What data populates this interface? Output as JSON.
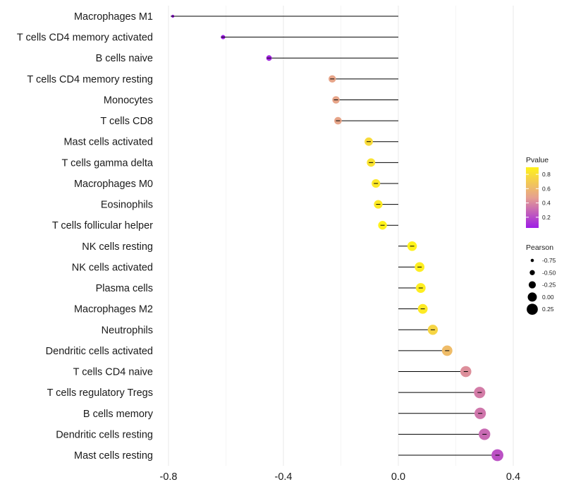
{
  "chart_data": {
    "type": "lollipop",
    "title": "",
    "xlabel": "",
    "ylabel": "",
    "xlim": [
      -0.82,
      0.43
    ],
    "x_ticks": [
      -0.8,
      -0.4,
      0.0,
      0.4
    ],
    "x_tick_labels": [
      "-0.8",
      "-0.4",
      "0.0",
      "0.4"
    ],
    "grid": true,
    "baseline": 0.0,
    "categories": [
      "Macrophages M1",
      "T cells CD4 memory activated",
      "B cells naive",
      "T cells CD4 memory resting",
      "Monocytes",
      "T cells CD8",
      "Mast cells activated",
      "T cells gamma delta",
      "Macrophages M0",
      "Eosinophils",
      "T cells follicular helper",
      "NK cells resting",
      "NK cells activated",
      "Plasma cells",
      "Macrophages M2",
      "Neutrophils",
      "Dendritic cells activated",
      "T cells CD4 naive",
      "T cells regulatory  Tregs ",
      "B cells memory",
      "Dendritic cells resting",
      "Mast cells resting"
    ],
    "pearson": [
      -0.785,
      -0.61,
      -0.45,
      -0.23,
      -0.217,
      -0.21,
      -0.103,
      -0.095,
      -0.078,
      -0.07,
      -0.055,
      0.048,
      0.074,
      0.078,
      0.085,
      0.12,
      0.17,
      0.235,
      0.283,
      0.285,
      0.3,
      0.345
    ],
    "pvalue": [
      0.05,
      0.05,
      0.08,
      0.5,
      0.5,
      0.5,
      0.78,
      0.82,
      0.85,
      0.86,
      0.9,
      0.9,
      0.88,
      0.88,
      0.86,
      0.75,
      0.62,
      0.42,
      0.36,
      0.34,
      0.3,
      0.22
    ],
    "color_legend": {
      "title": "Pvalue",
      "ticks": [
        0.2,
        0.4,
        0.6,
        0.8
      ],
      "tick_labels": [
        "0.2",
        "0.4",
        "0.6",
        "0.8"
      ],
      "range": [
        0.05,
        0.9
      ],
      "low_color": "#9e1ce6",
      "mid_color": "#e6a090",
      "high_color": "#fff21a"
    },
    "size_legend": {
      "title": "Pearson",
      "values": [
        -0.75,
        -0.5,
        -0.25,
        0.0,
        0.25
      ],
      "labels": [
        "-0.75",
        "-0.50",
        "-0.25",
        "0.00",
        "0.25"
      ]
    }
  }
}
